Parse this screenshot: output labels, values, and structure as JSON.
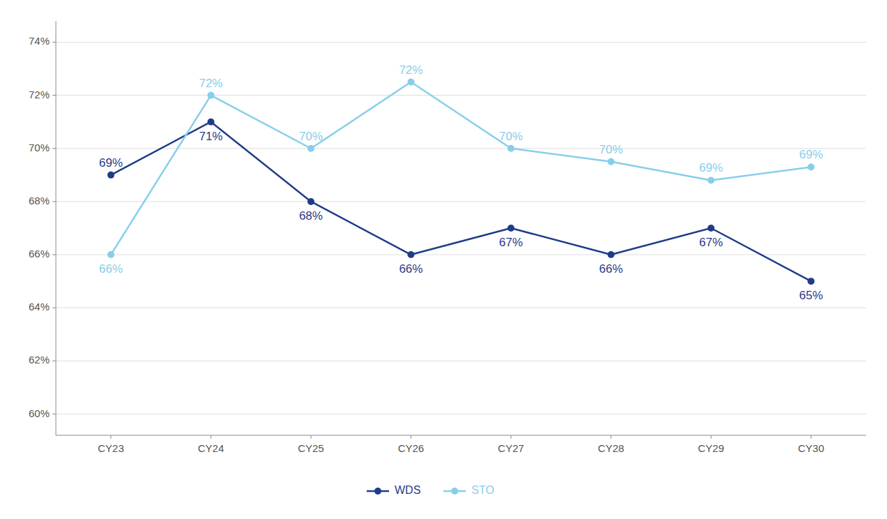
{
  "chart_data": {
    "type": "line",
    "categories": [
      "CY23",
      "CY24",
      "CY25",
      "CY26",
      "CY27",
      "CY28",
      "CY29",
      "CY30"
    ],
    "series": [
      {
        "name": "WDS",
        "color": "#1f3c88",
        "marker": "circle",
        "values": [
          0.69,
          0.71,
          0.68,
          0.66,
          0.67,
          0.66,
          0.67,
          0.65
        ],
        "value_labels": [
          "69%",
          "71%",
          "68%",
          "66%",
          "67%",
          "66%",
          "67%",
          "65%"
        ]
      },
      {
        "name": "STO",
        "color": "#87ceeb",
        "marker": "circle",
        "values": [
          0.66,
          0.72,
          0.7,
          0.725,
          0.7,
          0.695,
          0.688,
          0.693
        ],
        "value_labels": [
          "66%",
          "72%",
          "70%",
          "72%",
          "70%",
          "70%",
          "69%",
          "69%"
        ]
      }
    ],
    "ylim": [
      0.592,
      0.748
    ],
    "yticks": [
      {
        "value": 0.6,
        "label": "60%"
      },
      {
        "value": 0.62,
        "label": "62%"
      },
      {
        "value": 0.64,
        "label": "64%"
      },
      {
        "value": 0.66,
        "label": "66%"
      },
      {
        "value": 0.68,
        "label": "68%"
      },
      {
        "value": 0.7,
        "label": "70%"
      },
      {
        "value": 0.72,
        "label": "72%"
      },
      {
        "value": 0.74,
        "label": "74%"
      }
    ],
    "grid": true,
    "data_labels": true,
    "legend": "bottom"
  }
}
